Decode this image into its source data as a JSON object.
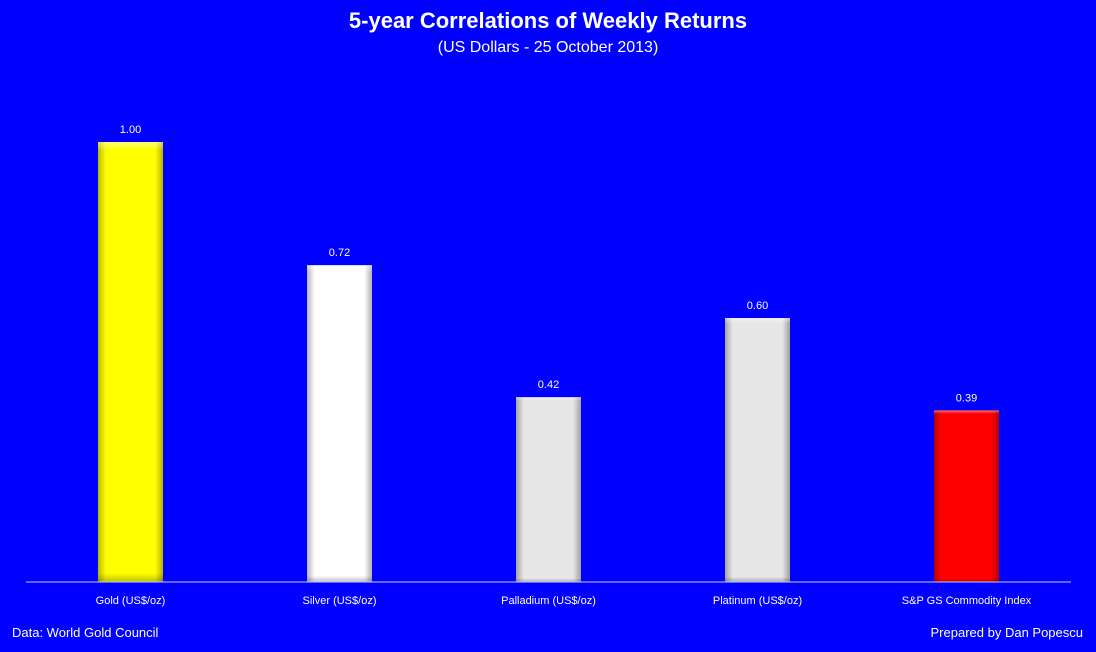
{
  "chart_data": {
    "type": "bar",
    "title": "5-year Correlations of Weekly Returns",
    "subtitle": "(US Dollars - 25 October 2013)",
    "categories": [
      "Gold (US$/oz)",
      "Silver (US$/oz)",
      "Palladium (US$/oz)",
      "Platinum (US$/oz)",
      "S&P GS Commodity Index"
    ],
    "values": [
      1.0,
      0.72,
      0.42,
      0.6,
      0.39
    ],
    "value_labels": [
      "1.00",
      "0.72",
      "0.42",
      "0.60",
      "0.39"
    ],
    "bar_colors": [
      "#ffff00",
      "#ffffff",
      "#e6e6e6",
      "#e6e6e6",
      "#ff0000"
    ],
    "ylim": [
      0,
      1.0
    ],
    "grid": false,
    "legend": "none"
  },
  "footer": {
    "source": "Data: World Gold Council",
    "credit": "Prepared by Dan Popescu"
  },
  "colors": {
    "background": "#0000ff",
    "text": "#ffffff",
    "axis": "#c8c8ff"
  }
}
